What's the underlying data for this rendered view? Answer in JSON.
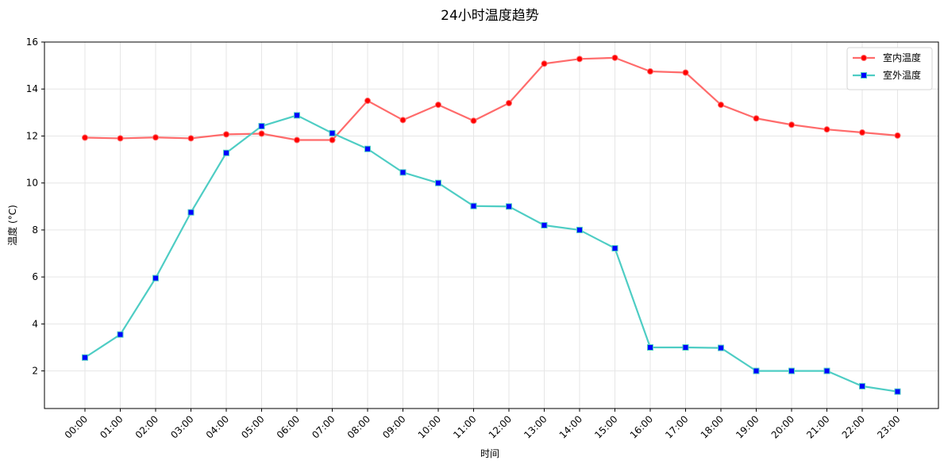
{
  "chart_data": {
    "type": "line",
    "title": "24小时温度趋势",
    "xlabel": "时间",
    "ylabel": "温度 (°C)",
    "categories": [
      "00:00",
      "01:00",
      "02:00",
      "03:00",
      "04:00",
      "05:00",
      "06:00",
      "07:00",
      "08:00",
      "09:00",
      "10:00",
      "11:00",
      "12:00",
      "13:00",
      "14:00",
      "15:00",
      "16:00",
      "17:00",
      "18:00",
      "19:00",
      "20:00",
      "21:00",
      "22:00",
      "23:00"
    ],
    "ylim": [
      0.4,
      16
    ],
    "yticks": [
      2,
      4,
      6,
      8,
      10,
      12,
      14,
      16
    ],
    "grid": true,
    "legend_position": "top-right",
    "series": [
      {
        "name": "室内温度",
        "color": "#ff6b6b",
        "marker": "circle",
        "marker_color": "#ff0000",
        "values": [
          11.93,
          11.9,
          11.94,
          11.9,
          12.07,
          12.1,
          11.83,
          11.83,
          13.5,
          12.68,
          13.33,
          12.65,
          13.4,
          15.08,
          15.28,
          15.33,
          14.75,
          14.7,
          13.33,
          12.75,
          12.48,
          12.28,
          12.15,
          12.02
        ]
      },
      {
        "name": "室外温度",
        "color": "#4ecdc4",
        "marker": "square",
        "marker_color": "#0000ff",
        "values": [
          2.57,
          3.55,
          5.95,
          8.75,
          11.28,
          12.42,
          12.88,
          12.12,
          11.45,
          10.45,
          10.0,
          9.02,
          9.0,
          8.2,
          8.0,
          7.22,
          3.0,
          3.0,
          2.98,
          2.0,
          2.0,
          2.0,
          1.35,
          1.12
        ]
      }
    ]
  }
}
